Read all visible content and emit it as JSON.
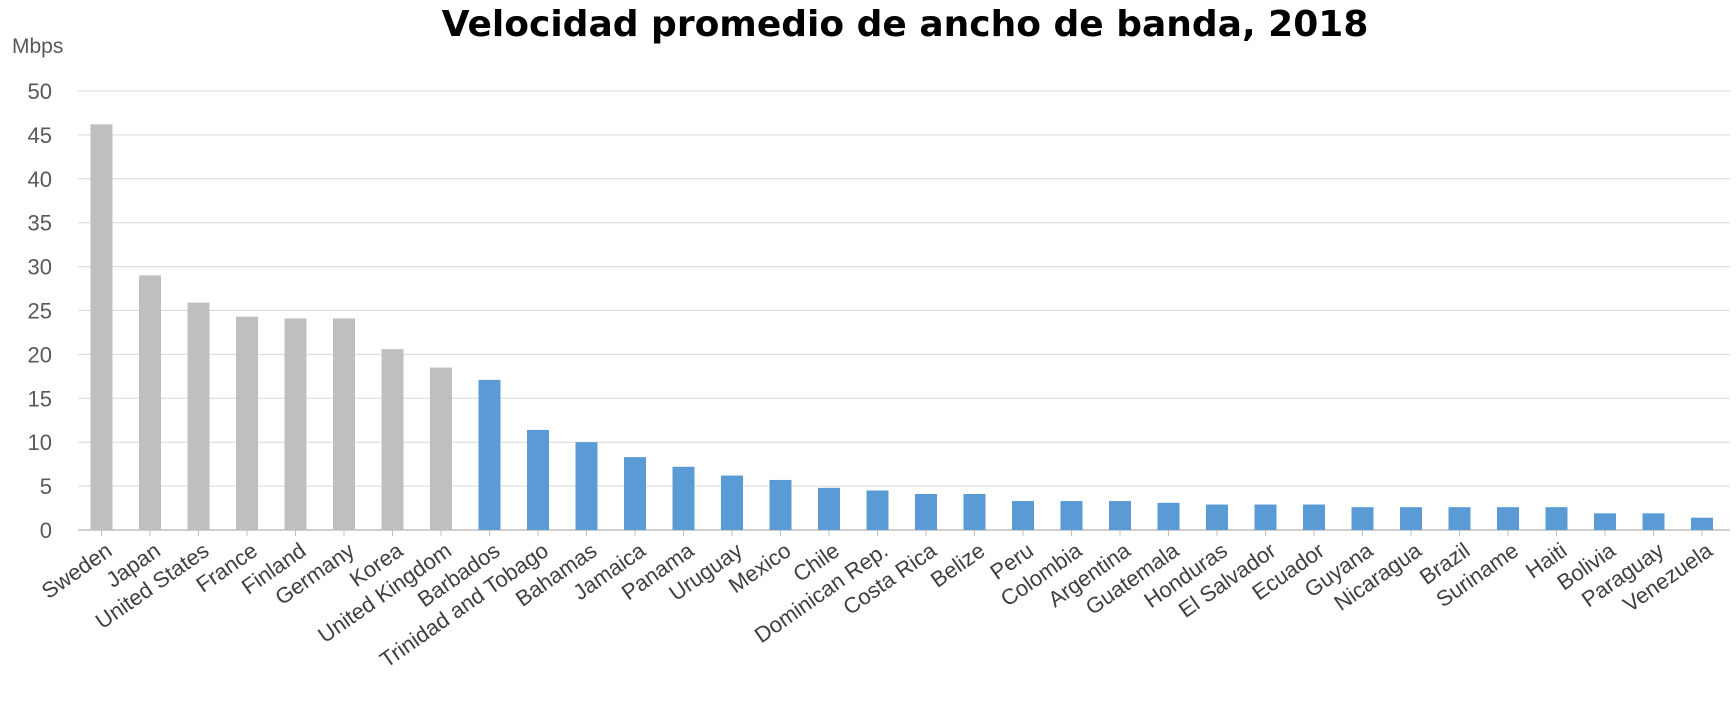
{
  "chart_data": {
    "type": "bar",
    "title": "Velocidad promedio de ancho de banda, 2018",
    "ylabel": "Mbps",
    "xlabel": "",
    "ylim": [
      0,
      50
    ],
    "yticks": [
      0,
      5,
      10,
      15,
      20,
      25,
      30,
      35,
      40,
      45,
      50
    ],
    "grid": true,
    "legend": "none",
    "colors": {
      "oecd": "#bfbfbf",
      "lac": "#5b9bd5"
    },
    "categories": [
      "Sweden",
      "Japan",
      "United States",
      "France",
      "Finland",
      "Germany",
      "Korea",
      "United Kingdom",
      "Barbados",
      "Trinidad and Tobago",
      "Bahamas",
      "Jamaica",
      "Panama",
      "Uruguay",
      "Mexico",
      "Chile",
      "Dominican Rep.",
      "Costa Rica",
      "Belize",
      "Peru",
      "Colombia",
      "Argentina",
      "Guatemala",
      "Honduras",
      "El Salvador",
      "Ecuador",
      "Guyana",
      "Nicaragua",
      "Brazil",
      "Suriname",
      "Haiti",
      "Bolivia",
      "Paraguay",
      "Venezuela"
    ],
    "values": [
      46.2,
      29.0,
      25.9,
      24.3,
      24.1,
      24.1,
      20.6,
      18.5,
      17.1,
      11.4,
      10.0,
      8.3,
      7.2,
      6.2,
      5.7,
      4.8,
      4.5,
      4.1,
      4.1,
      3.3,
      3.3,
      3.3,
      3.1,
      2.9,
      2.9,
      2.9,
      2.6,
      2.6,
      2.6,
      2.6,
      2.6,
      1.9,
      1.9,
      1.4
    ],
    "color_groups": [
      "oecd",
      "oecd",
      "oecd",
      "oecd",
      "oecd",
      "oecd",
      "oecd",
      "oecd",
      "lac",
      "lac",
      "lac",
      "lac",
      "lac",
      "lac",
      "lac",
      "lac",
      "lac",
      "lac",
      "lac",
      "lac",
      "lac",
      "lac",
      "lac",
      "lac",
      "lac",
      "lac",
      "lac",
      "lac",
      "lac",
      "lac",
      "lac",
      "lac",
      "lac",
      "lac"
    ]
  }
}
